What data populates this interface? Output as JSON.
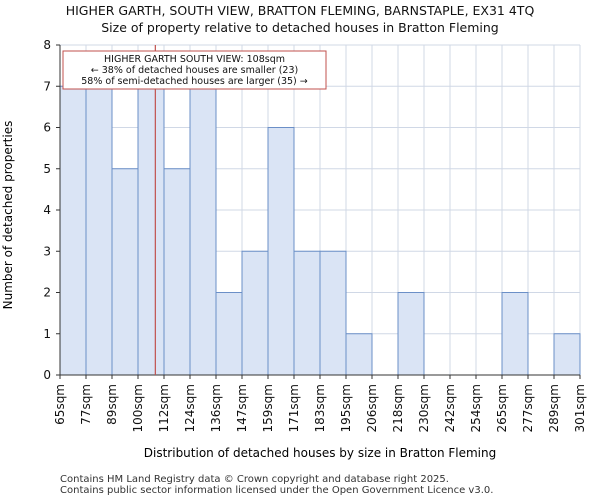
{
  "title": {
    "line1": "HIGHER GARTH, SOUTH VIEW, BRATTON FLEMING, BARNSTAPLE, EX31 4TQ",
    "line2": "Size of property relative to detached houses in Bratton Fleming"
  },
  "footer": {
    "line1": "Contains HM Land Registry data © Crown copyright and database right 2025.",
    "line2": "Contains public sector information licensed under the Open Government Licence v3.0."
  },
  "colors": {
    "bar_fill": "#dae4f5",
    "bar_stroke": "#6b8fc7",
    "marker": "#c0504d",
    "grid": "#d0d8e6",
    "axis": "#333333"
  },
  "chart_data": {
    "type": "bar",
    "categories": [
      "65sqm",
      "77sqm",
      "89sqm",
      "100sqm",
      "112sqm",
      "124sqm",
      "136sqm",
      "147sqm",
      "159sqm",
      "171sqm",
      "183sqm",
      "195sqm",
      "206sqm",
      "218sqm",
      "230sqm",
      "242sqm",
      "254sqm",
      "265sqm",
      "277sqm",
      "289sqm",
      "301sqm"
    ],
    "values": [
      7,
      7,
      5,
      7,
      5,
      7,
      2,
      3,
      6,
      3,
      3,
      1,
      0,
      2,
      0,
      0,
      0,
      2,
      0,
      1,
      0
    ],
    "xlabel": "Distribution of detached houses by size in Bratton Fleming",
    "ylabel": "Number of detached properties",
    "ylim": [
      0,
      8
    ],
    "yticks": [
      0,
      1,
      2,
      3,
      4,
      5,
      6,
      7,
      8
    ],
    "grid": true,
    "marker": {
      "value_sqm": 108,
      "label_line1": "HIGHER GARTH SOUTH VIEW: 108sqm",
      "label_line2": "← 38% of detached houses are smaller (23)",
      "label_line3": "58% of semi-detached houses are larger (35) →"
    }
  }
}
